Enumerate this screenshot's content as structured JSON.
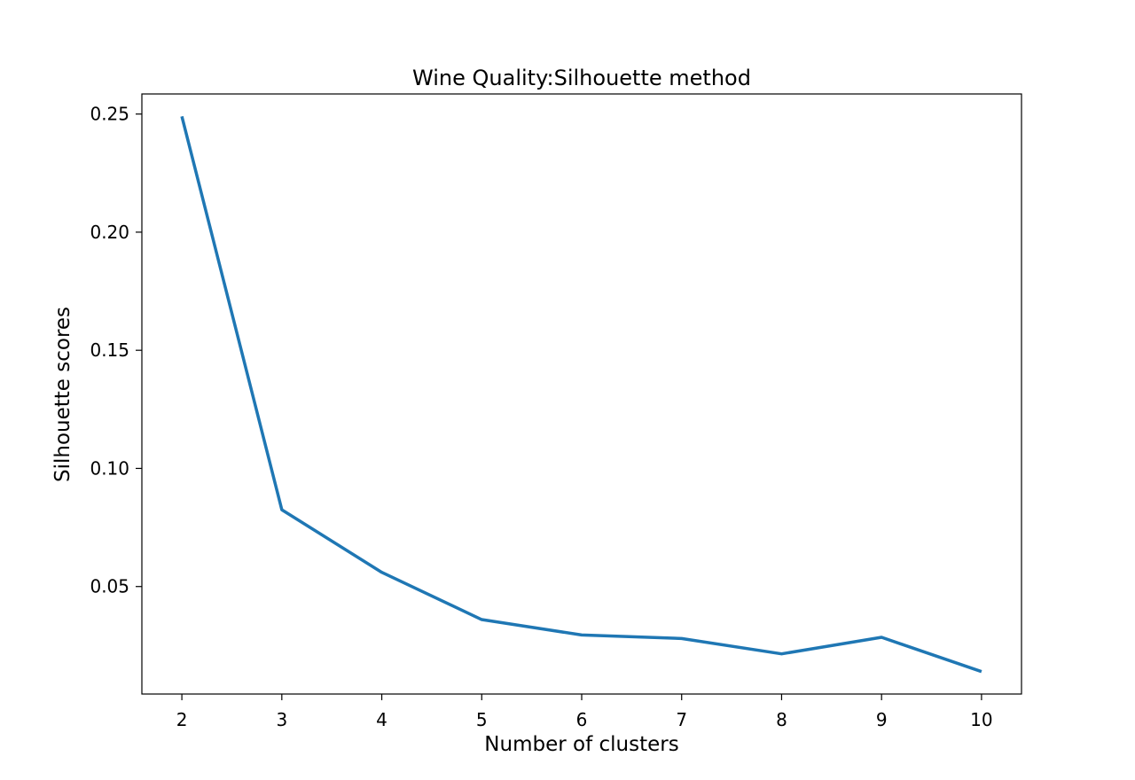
{
  "chart_data": {
    "type": "line",
    "title": "Wine Quality:Silhouette method",
    "xlabel": "Number of clusters",
    "ylabel": "Silhouette scores",
    "x": [
      2,
      3,
      4,
      5,
      6,
      7,
      8,
      9,
      10
    ],
    "series": [
      {
        "values": [
          0.249,
          0.0825,
          0.056,
          0.036,
          0.0295,
          0.028,
          0.0215,
          0.0285,
          0.014
        ]
      }
    ],
    "xlim": [
      1.6,
      10.4
    ],
    "ylim": [
      0.0045,
      0.2585
    ],
    "xticks": [
      "2",
      "3",
      "4",
      "5",
      "6",
      "7",
      "8",
      "9",
      "10"
    ],
    "yticks": [
      "0.05",
      "0.10",
      "0.15",
      "0.20",
      "0.25"
    ],
    "ytick_values": [
      0.05,
      0.1,
      0.15,
      0.2,
      0.25
    ],
    "grid": false,
    "line_color": "#1f77b4"
  }
}
